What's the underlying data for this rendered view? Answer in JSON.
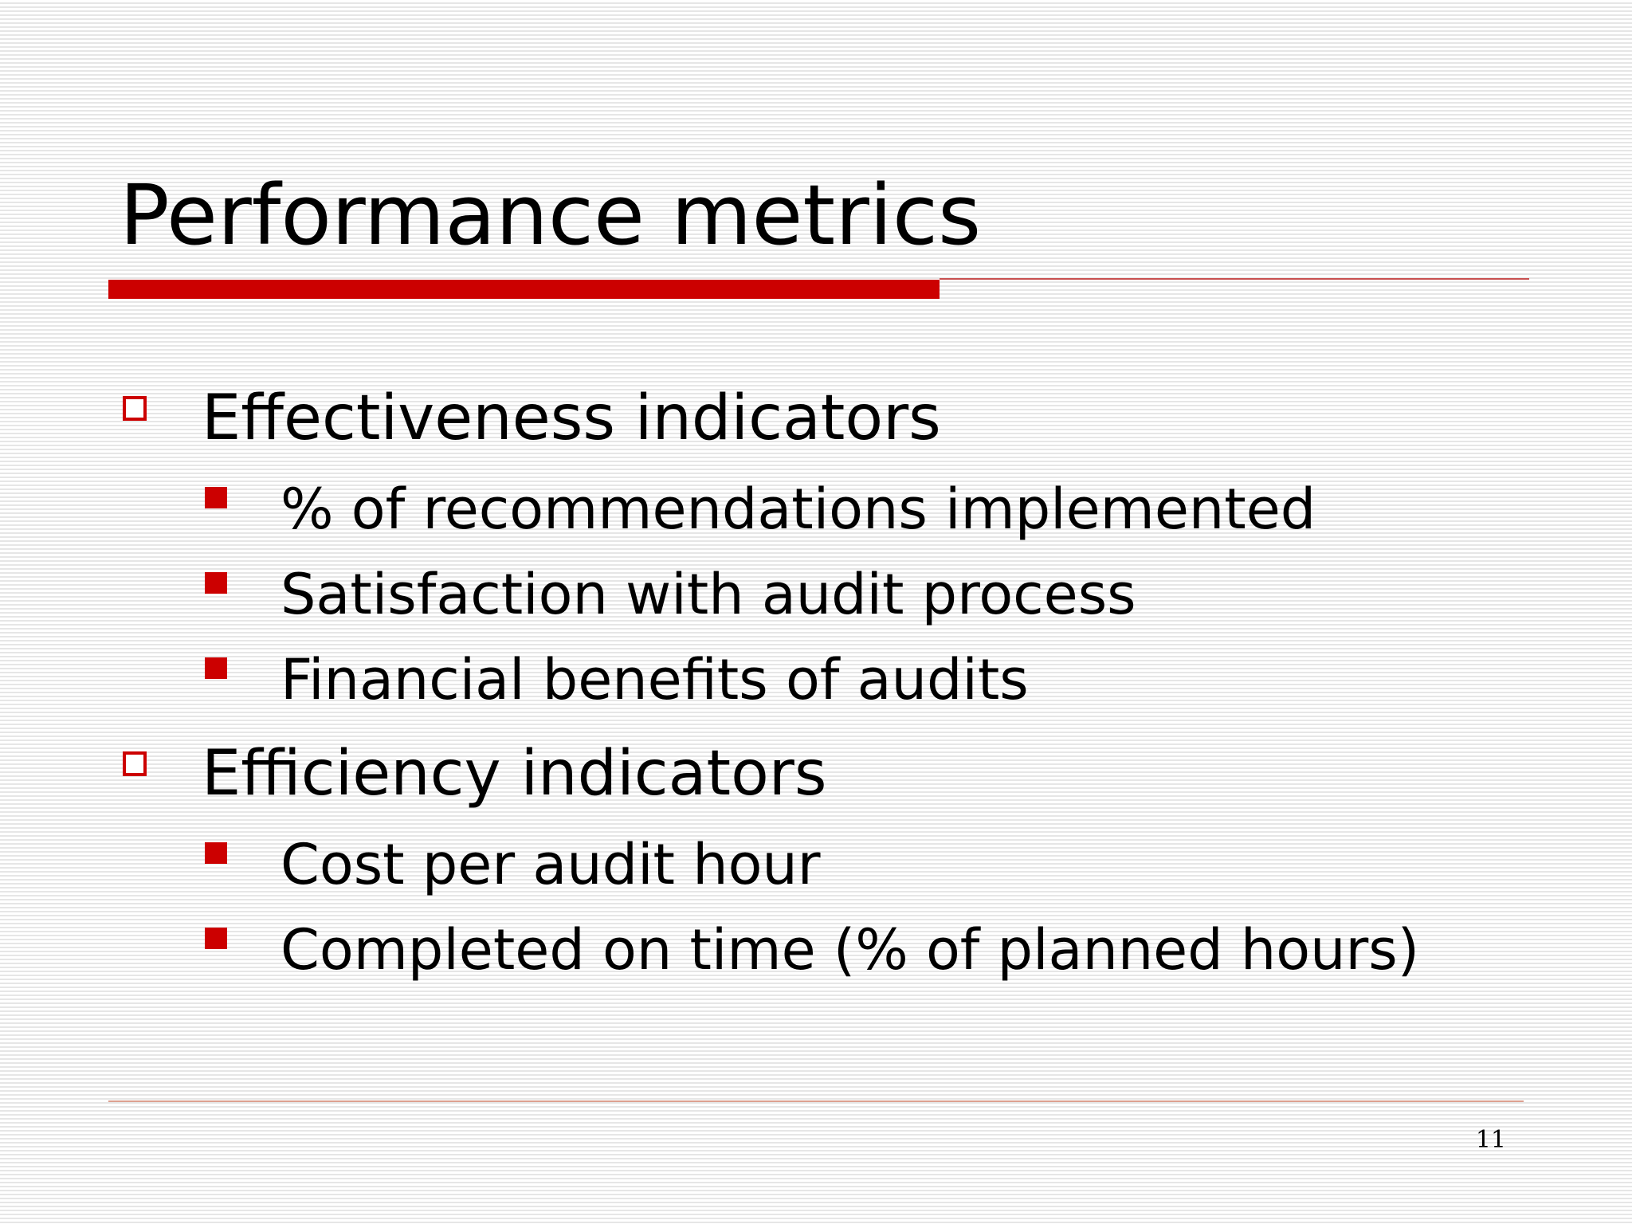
{
  "slide": {
    "title": "Performance metrics",
    "page_number": "11"
  },
  "bullets": [
    {
      "label": "Effectiveness indicators",
      "icon": "hollow-square-bullet-icon",
      "sub_items": [
        {
          "label": "% of recommendations implemented",
          "icon": "filled-square-bullet-icon"
        },
        {
          "label": "Satisfaction with audit process",
          "icon": "filled-square-bullet-icon"
        },
        {
          "label": "Financial benefits of audits",
          "icon": "filled-square-bullet-icon"
        }
      ]
    },
    {
      "label": "Efficiency indicators",
      "icon": "hollow-square-bullet-icon",
      "sub_items": [
        {
          "label": "Cost per audit hour",
          "icon": "filled-square-bullet-icon"
        },
        {
          "label": "Completed on time (% of planned hours)",
          "icon": "filled-square-bullet-icon"
        }
      ]
    }
  ],
  "colors": {
    "accent": "#cc0000",
    "text": "#000000",
    "stripe": "#e6e6e6"
  }
}
